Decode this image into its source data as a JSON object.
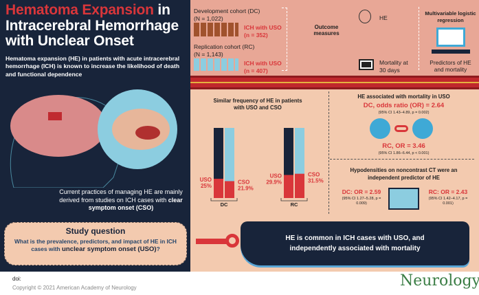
{
  "title": {
    "highlight": "Hematoma Expansion",
    "rest": " in Intracerebral Hemorrhage with Unclear Onset"
  },
  "intro": "Hematoma expansion (HE) in patients with acute intracerebral hemorrhage (ICH) is known to increase the likelihood of death and functional dependence",
  "current": {
    "text": "Current practices of managing HE are mainly derived from studies on ICH cases with ",
    "bold": "clear symptom onset (CSO)"
  },
  "study": {
    "heading": "Study question",
    "text": "What is the prevalence, predictors, and impact of HE in ICH cases with ",
    "bold": "unclear symptom onset (USO)",
    "end": "?"
  },
  "footer": {
    "doi": "doi:",
    "copyright": "Copyright © 2021 American Academy of Neurology",
    "logo": "Neurology"
  },
  "design": {
    "dc": {
      "label": "Development cohort (DC)",
      "n": "(N = 1,022)",
      "uso": "ICH with USO",
      "uso_n": "(n = 352)"
    },
    "rc": {
      "label": "Replication cohort (RC)",
      "n": "(N = 1,143)",
      "uso": "ICH with USO",
      "uso_n": "(n = 407)"
    },
    "outcome": "Outcome measures",
    "he": "HE",
    "mortality": "Mortality at 30 days",
    "regression": "Multivariable logistic regression",
    "predictors": "Predictors of HE and mortality"
  },
  "chart_data": {
    "type": "bar",
    "title": "Similar frequency of HE in patients with USO and CSO",
    "categories": [
      "DC",
      "RC"
    ],
    "series": [
      {
        "name": "USO",
        "values": [
          25,
          29.9
        ],
        "labels": [
          "25%",
          "29.9%"
        ]
      },
      {
        "name": "CSO",
        "values": [
          21.9,
          31.5
        ],
        "labels": [
          "21.9%",
          "31.5%"
        ]
      }
    ],
    "ylim": [
      0,
      100
    ],
    "colors": {
      "uso_bg": "#18243a",
      "cso_bg": "#8ccde0",
      "fill": "#d9363a"
    }
  },
  "mortality": {
    "title": "HE associated with mortality in USO",
    "dc": "DC, odds ratio (OR) = 2.64",
    "dc_ci": "(95% CI 1.43–4.89, p = 0.002)",
    "rc": "RC, OR = 3.46",
    "rc_ci": "(95% CI 1.86–6.44, p < 0.001)"
  },
  "hypo": {
    "title": "Hypodensities on noncontrast CT were an independent predictor of HE",
    "dc": "DC: OR = 2.59",
    "dc_ci": "(95% CI 1.27–5.28, p = 0.009)",
    "rc": "RC: OR = 2.43",
    "rc_ci": "(95% CI 1.42–4.17, p = 0.001)"
  },
  "conclusion": "HE is common in ICH cases with USO, and independently associated with mortality"
}
